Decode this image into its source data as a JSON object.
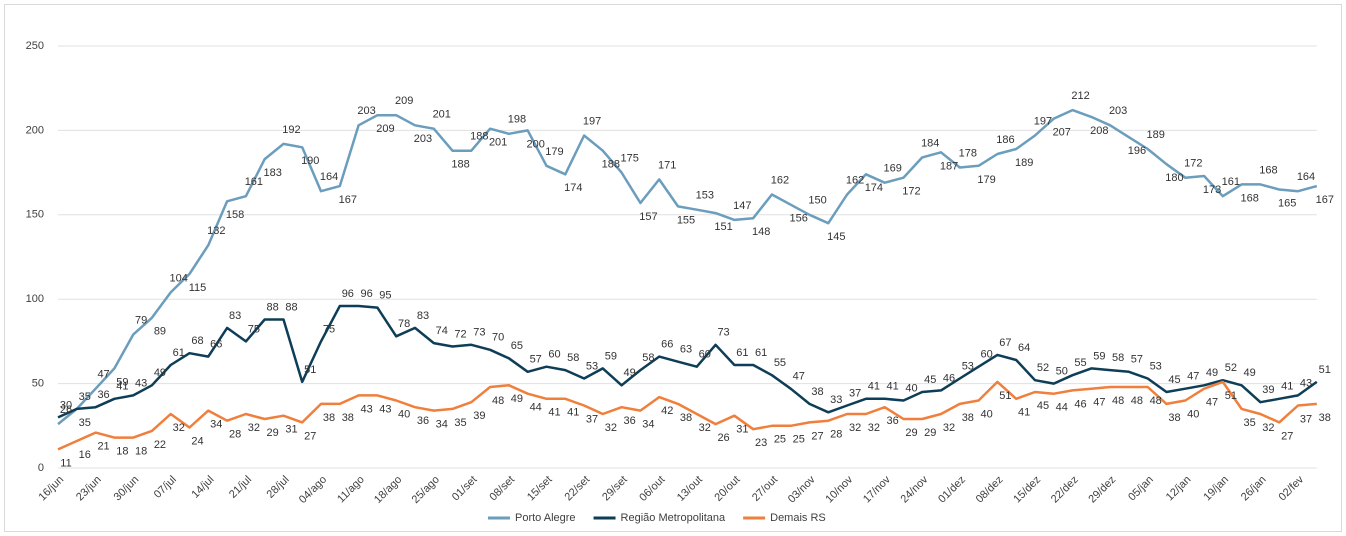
{
  "chart_data": {
    "type": "line",
    "categories": [
      "16/jun",
      null,
      "23/jun",
      null,
      "30/jun",
      null,
      "07/jul",
      null,
      "14/jul",
      null,
      "21/jul",
      null,
      "28/jul",
      null,
      "04/ago",
      null,
      "11/ago",
      null,
      "18/ago",
      null,
      "25/ago",
      null,
      "01/set",
      null,
      "08/set",
      null,
      "15/set",
      null,
      "22/set",
      null,
      "29/set",
      null,
      "06/out",
      null,
      "13/out",
      null,
      "20/out",
      null,
      "27/out",
      null,
      "03/nov",
      null,
      "10/nov",
      null,
      "17/nov",
      null,
      "24/nov",
      null,
      "01/dez",
      null,
      "08/dez",
      null,
      "15/dez",
      null,
      "22/dez",
      null,
      "29/dez",
      null,
      "05/jan",
      null,
      "12/jan",
      null,
      "19/jan",
      null,
      "26/jan",
      null,
      "02/fev",
      null
    ],
    "series": [
      {
        "name": "Porto Alegre",
        "color": "#6b9dbd",
        "values": [
          26,
          35,
          47,
          59,
          79,
          89,
          104,
          115,
          132,
          158,
          161,
          183,
          192,
          190,
          164,
          167,
          203,
          209,
          209,
          203,
          201,
          188,
          188,
          201,
          198,
          200,
          179,
          174,
          197,
          188,
          175,
          157,
          171,
          155,
          153,
          151,
          147,
          148,
          162,
          156,
          150,
          145,
          162,
          174,
          169,
          172,
          184,
          187,
          178,
          179,
          186,
          189,
          197,
          207,
          212,
          208,
          203,
          196,
          189,
          180,
          172,
          173,
          161,
          168,
          168,
          165,
          164,
          167
        ]
      },
      {
        "name": "Região Metropolitana",
        "color": "#0e3e57",
        "values": [
          30,
          35,
          36,
          41,
          43,
          49,
          61,
          68,
          66,
          83,
          75,
          88,
          88,
          51,
          75,
          96,
          96,
          95,
          78,
          83,
          74,
          72,
          73,
          70,
          65,
          57,
          60,
          58,
          53,
          59,
          49,
          58,
          66,
          63,
          60,
          73,
          61,
          61,
          55,
          47,
          38,
          33,
          37,
          41,
          41,
          40,
          45,
          46,
          53,
          60,
          67,
          64,
          52,
          50,
          55,
          59,
          58,
          57,
          53,
          45,
          47,
          49,
          52,
          49,
          39,
          41,
          43,
          51
        ]
      },
      {
        "name": "Demais RS",
        "color": "#f07f3c",
        "values": [
          11,
          16,
          21,
          18,
          18,
          22,
          32,
          24,
          34,
          28,
          32,
          29,
          31,
          27,
          38,
          38,
          43,
          43,
          40,
          36,
          34,
          35,
          39,
          48,
          49,
          44,
          41,
          41,
          37,
          32,
          36,
          34,
          42,
          38,
          32,
          26,
          31,
          23,
          25,
          25,
          27,
          28,
          32,
          32,
          36,
          29,
          29,
          32,
          38,
          40,
          51,
          41,
          45,
          44,
          46,
          47,
          48,
          48,
          48,
          38,
          40,
          47,
          51,
          35,
          32,
          27,
          37,
          38
        ]
      }
    ],
    "ylim": [
      0,
      250
    ],
    "yticks": [
      0,
      50,
      100,
      150,
      200,
      250
    ],
    "grid": true,
    "legend": "bottom"
  }
}
